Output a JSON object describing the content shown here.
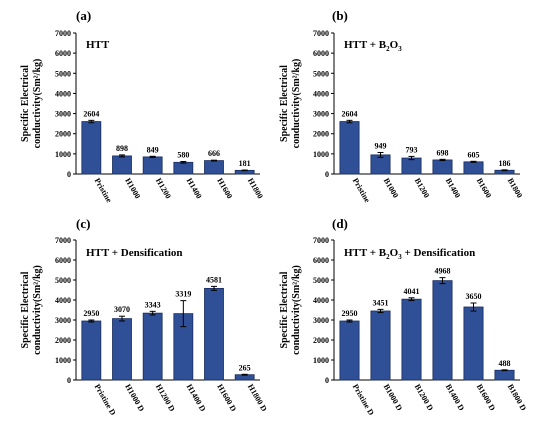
{
  "colors": {
    "bar": "#2f4f96",
    "bar_edge": "#1a2e5e",
    "axis": "#000000"
  },
  "ylabel_line1": "Specific Electrical",
  "ylabel_line2": "conductivity(Sm²/kg)",
  "chart_data": [
    {
      "type": "bar",
      "panel_label": "(a)",
      "title_parts": [
        [
          "HTT",
          null
        ]
      ],
      "categories": [
        "Pristine",
        "H1000",
        "H1200",
        "H1400",
        "H1600",
        "H1800"
      ],
      "values": [
        2604,
        898,
        849,
        580,
        666,
        181
      ],
      "errors": [
        60,
        50,
        30,
        40,
        20,
        15
      ],
      "value_labels": [
        "2604",
        "898",
        "849",
        "580",
        "666",
        "181"
      ],
      "ylim": [
        0,
        7000
      ],
      "yticks": [
        0,
        1000,
        2000,
        3000,
        4000,
        5000,
        6000,
        7000
      ]
    },
    {
      "type": "bar",
      "panel_label": "(b)",
      "title_parts": [
        [
          "HTT + B",
          null
        ],
        [
          "2",
          "sub"
        ],
        [
          "O",
          null
        ],
        [
          "3",
          "sub"
        ]
      ],
      "categories": [
        "Pristine",
        "B1000",
        "B1200",
        "B1400",
        "B1600",
        "B1800"
      ],
      "values": [
        2604,
        949,
        793,
        698,
        605,
        186
      ],
      "errors": [
        60,
        120,
        80,
        30,
        25,
        20
      ],
      "value_labels": [
        "2604",
        "949",
        "793",
        "698",
        "605",
        "186"
      ],
      "ylim": [
        0,
        7000
      ],
      "yticks": [
        0,
        1000,
        2000,
        3000,
        4000,
        5000,
        6000,
        7000
      ]
    },
    {
      "type": "bar",
      "panel_label": "(c)",
      "title_parts": [
        [
          "HTT + Densification",
          null
        ]
      ],
      "categories": [
        "Pristine D",
        "H1000 D",
        "H1200 D",
        "H1400 D",
        "H1600 D",
        "H1800 D"
      ],
      "values": [
        2950,
        3070,
        3343,
        3319,
        4581,
        265
      ],
      "errors": [
        50,
        120,
        90,
        650,
        100,
        20
      ],
      "value_labels": [
        "2950",
        "3070",
        "3343",
        "3319",
        "4581",
        "265"
      ],
      "ylim": [
        0,
        7000
      ],
      "yticks": [
        0,
        1000,
        2000,
        3000,
        4000,
        5000,
        6000,
        7000
      ]
    },
    {
      "type": "bar",
      "panel_label": "(d)",
      "title_parts": [
        [
          "HTT + B",
          null
        ],
        [
          "2",
          "sub"
        ],
        [
          "O",
          null
        ],
        [
          "3",
          "sub"
        ],
        [
          " + Densification",
          null
        ]
      ],
      "categories": [
        "Pristine D",
        "B1000 D",
        "B1200 D",
        "B1400 D",
        "B1600 D",
        "B1800 D"
      ],
      "values": [
        2950,
        3451,
        4041,
        4968,
        3650,
        488
      ],
      "errors": [
        50,
        80,
        70,
        150,
        200,
        20
      ],
      "value_labels": [
        "2950",
        "3451",
        "4041",
        "4968",
        "3650",
        "488"
      ],
      "ylim": [
        0,
        7000
      ],
      "yticks": [
        0,
        1000,
        2000,
        3000,
        4000,
        5000,
        6000,
        7000
      ]
    }
  ]
}
